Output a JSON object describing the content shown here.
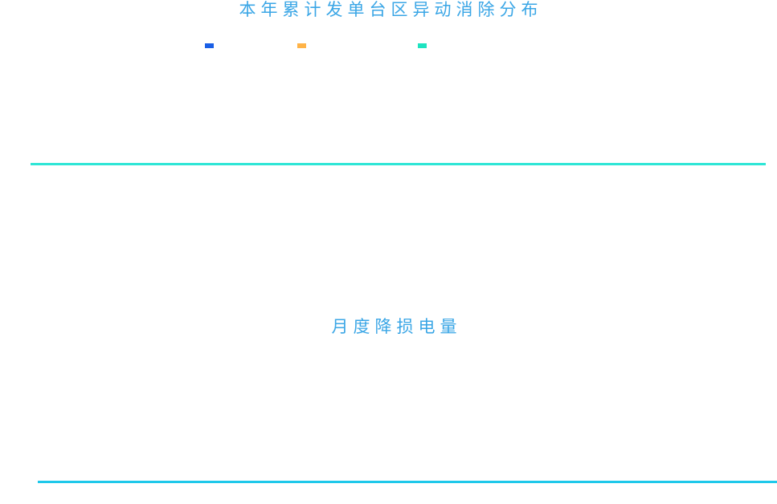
{
  "chart_data": [
    {
      "type": "bar",
      "title": "本年累计发单台区异动消除分布",
      "series": [
        {
          "color": "#1a5fe6",
          "values": []
        },
        {
          "color": "#ffb347",
          "values": []
        },
        {
          "color": "#1ee3c0",
          "values": []
        }
      ],
      "axis_color": "#2ee6d6",
      "grid": false,
      "legend": "top"
    },
    {
      "type": "bar",
      "title": "月度降损电量",
      "series": [],
      "axis_color": "#1ec8ea",
      "grid": false
    }
  ],
  "colors": {
    "title": "#3aa6e6"
  }
}
